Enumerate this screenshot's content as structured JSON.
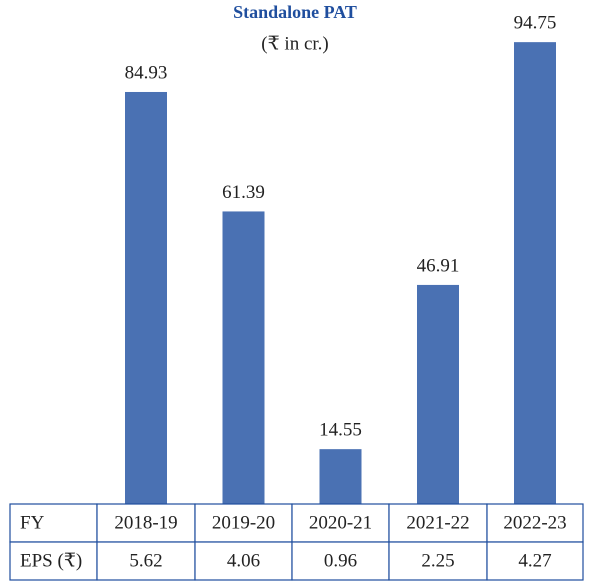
{
  "chart_data": {
    "type": "bar",
    "title": "Standalone PAT",
    "subtitle": "(₹ in cr.)",
    "categories": [
      "2018-19",
      "2019-20",
      "2020-21",
      "2021-22",
      "2022-23"
    ],
    "values": [
      84.93,
      61.39,
      14.55,
      46.91,
      94.75
    ],
    "color": "#4a71b3",
    "row_labels": [
      "FY",
      "EPS (₹)"
    ],
    "eps": [
      "5.62",
      "4.06",
      "0.96",
      "2.25",
      "4.27"
    ]
  }
}
